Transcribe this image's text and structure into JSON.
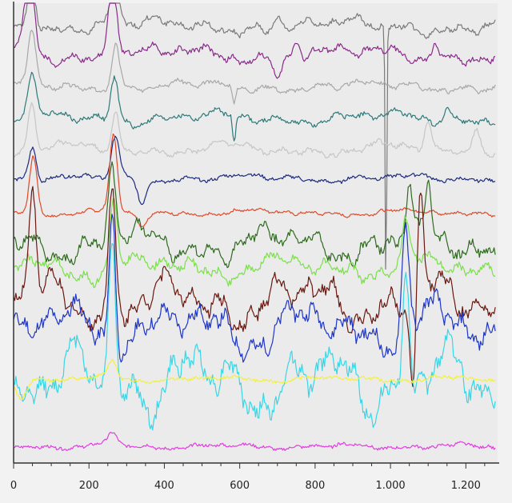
{
  "chart_data": {
    "type": "line",
    "title": "",
    "xlabel": "",
    "ylabel": "",
    "xlim": [
      0,
      1280
    ],
    "ylim": [
      0,
      16
    ],
    "x_ticks": [
      {
        "value": 0,
        "label": "0"
      },
      {
        "value": 200,
        "label": "200"
      },
      {
        "value": 400,
        "label": "400"
      },
      {
        "value": 600,
        "label": "600"
      },
      {
        "value": 800,
        "label": "800"
      },
      {
        "value": 1000,
        "label": "1.000"
      },
      {
        "value": 1200,
        "label": "1.200"
      }
    ],
    "grid": false,
    "legend": "none",
    "series": [
      {
        "color": "#7a7a7a",
        "baseline": 15.2,
        "amplitude": 0.35,
        "noise": 0.08,
        "seed": 1,
        "events": [
          {
            "x": 48,
            "h": 2.2,
            "w": 14
          },
          {
            "x": 268,
            "h": 2.0,
            "w": 14
          },
          {
            "x": 700,
            "h": 0.5,
            "w": 12
          },
          {
            "x": 988,
            "h": -9.5,
            "w": 3
          }
        ]
      },
      {
        "color": "#8a2b8a",
        "baseline": 14.2,
        "amplitude": 0.4,
        "noise": 0.08,
        "seed": 2,
        "events": [
          {
            "x": 42,
            "h": 3.4,
            "w": 16
          },
          {
            "x": 262,
            "h": 3.0,
            "w": 16
          },
          {
            "x": 700,
            "h": -0.6,
            "w": 14
          },
          {
            "x": 750,
            "h": 0.7,
            "w": 14
          },
          {
            "x": 1120,
            "h": 0.6,
            "w": 12
          }
        ]
      },
      {
        "color": "#a8a8a8",
        "baseline": 13.1,
        "amplitude": 0.25,
        "noise": 0.06,
        "seed": 3,
        "events": [
          {
            "x": 48,
            "h": 1.8,
            "w": 14
          },
          {
            "x": 270,
            "h": 1.6,
            "w": 14
          },
          {
            "x": 585,
            "h": -0.7,
            "w": 6
          }
        ]
      },
      {
        "color": "#2e7a7a",
        "baseline": 12.0,
        "amplitude": 0.3,
        "noise": 0.07,
        "seed": 4,
        "events": [
          {
            "x": 48,
            "h": 1.4,
            "w": 14
          },
          {
            "x": 268,
            "h": 1.5,
            "w": 14
          },
          {
            "x": 585,
            "h": -1.0,
            "w": 6
          },
          {
            "x": 1150,
            "h": 0.5,
            "w": 10
          }
        ]
      },
      {
        "color": "#c6c6c6",
        "baseline": 10.9,
        "amplitude": 0.3,
        "noise": 0.06,
        "seed": 5,
        "events": [
          {
            "x": 48,
            "h": 1.6,
            "w": 14
          },
          {
            "x": 270,
            "h": 1.4,
            "w": 14
          },
          {
            "x": 1100,
            "h": 1.0,
            "w": 14
          },
          {
            "x": 1230,
            "h": 0.8,
            "w": 14
          }
        ]
      },
      {
        "color": "#1c2a80",
        "baseline": 9.9,
        "amplitude": 0.18,
        "noise": 0.05,
        "seed": 6,
        "events": [
          {
            "x": 50,
            "h": 1.2,
            "w": 14
          },
          {
            "x": 270,
            "h": 1.4,
            "w": 14
          },
          {
            "x": 340,
            "h": -0.8,
            "w": 16
          }
        ]
      },
      {
        "color": "#e04a2a",
        "baseline": 8.7,
        "amplitude": 0.15,
        "noise": 0.04,
        "seed": 7,
        "events": [
          {
            "x": 52,
            "h": 2.0,
            "w": 14
          },
          {
            "x": 265,
            "h": 2.6,
            "w": 14
          },
          {
            "x": 340,
            "h": -0.5,
            "w": 16
          }
        ]
      },
      {
        "color": "#2f6a1e",
        "baseline": 7.6,
        "amplitude": 0.75,
        "noise": 0.15,
        "seed": 8,
        "events": [
          {
            "x": 262,
            "h": 2.5,
            "w": 14
          },
          {
            "x": 1050,
            "h": 2.0,
            "w": 12
          },
          {
            "x": 1100,
            "h": 1.6,
            "w": 12
          }
        ]
      },
      {
        "color": "#7be04a",
        "baseline": 6.8,
        "amplitude": 0.55,
        "noise": 0.12,
        "seed": 9,
        "events": [
          {
            "x": 265,
            "h": 2.2,
            "w": 14
          },
          {
            "x": 1040,
            "h": 1.4,
            "w": 12
          }
        ]
      },
      {
        "color": "#6a1810",
        "baseline": 5.6,
        "amplitude": 1.1,
        "noise": 0.18,
        "seed": 10,
        "events": [
          {
            "x": 50,
            "h": 4.0,
            "w": 12
          },
          {
            "x": 262,
            "h": 4.2,
            "w": 12
          },
          {
            "x": 1060,
            "h": -3.0,
            "w": 10
          },
          {
            "x": 1080,
            "h": 3.5,
            "w": 10
          }
        ]
      },
      {
        "color": "#1e36c8",
        "baseline": 4.7,
        "amplitude": 1.1,
        "noise": 0.2,
        "seed": 11,
        "events": [
          {
            "x": 262,
            "h": 4.5,
            "w": 12
          },
          {
            "x": 1040,
            "h": 3.8,
            "w": 12
          }
        ]
      },
      {
        "color": "#38d6e6",
        "baseline": 2.8,
        "amplitude": 1.5,
        "noise": 0.25,
        "seed": 12,
        "events": [
          {
            "x": 262,
            "h": 5.5,
            "w": 12
          },
          {
            "x": 1040,
            "h": 4.2,
            "w": 12
          }
        ]
      },
      {
        "color": "#f4f03a",
        "baseline": 2.9,
        "amplitude": 0.12,
        "noise": 0.05,
        "seed": 13,
        "events": [
          {
            "x": 20,
            "h": -0.6,
            "w": 20
          },
          {
            "x": 262,
            "h": 0.6,
            "w": 16
          }
        ]
      },
      {
        "color": "#e03ee0",
        "baseline": 0.55,
        "amplitude": 0.12,
        "noise": 0.05,
        "seed": 14,
        "events": [
          {
            "x": 262,
            "h": 0.5,
            "w": 16
          }
        ]
      }
    ]
  }
}
